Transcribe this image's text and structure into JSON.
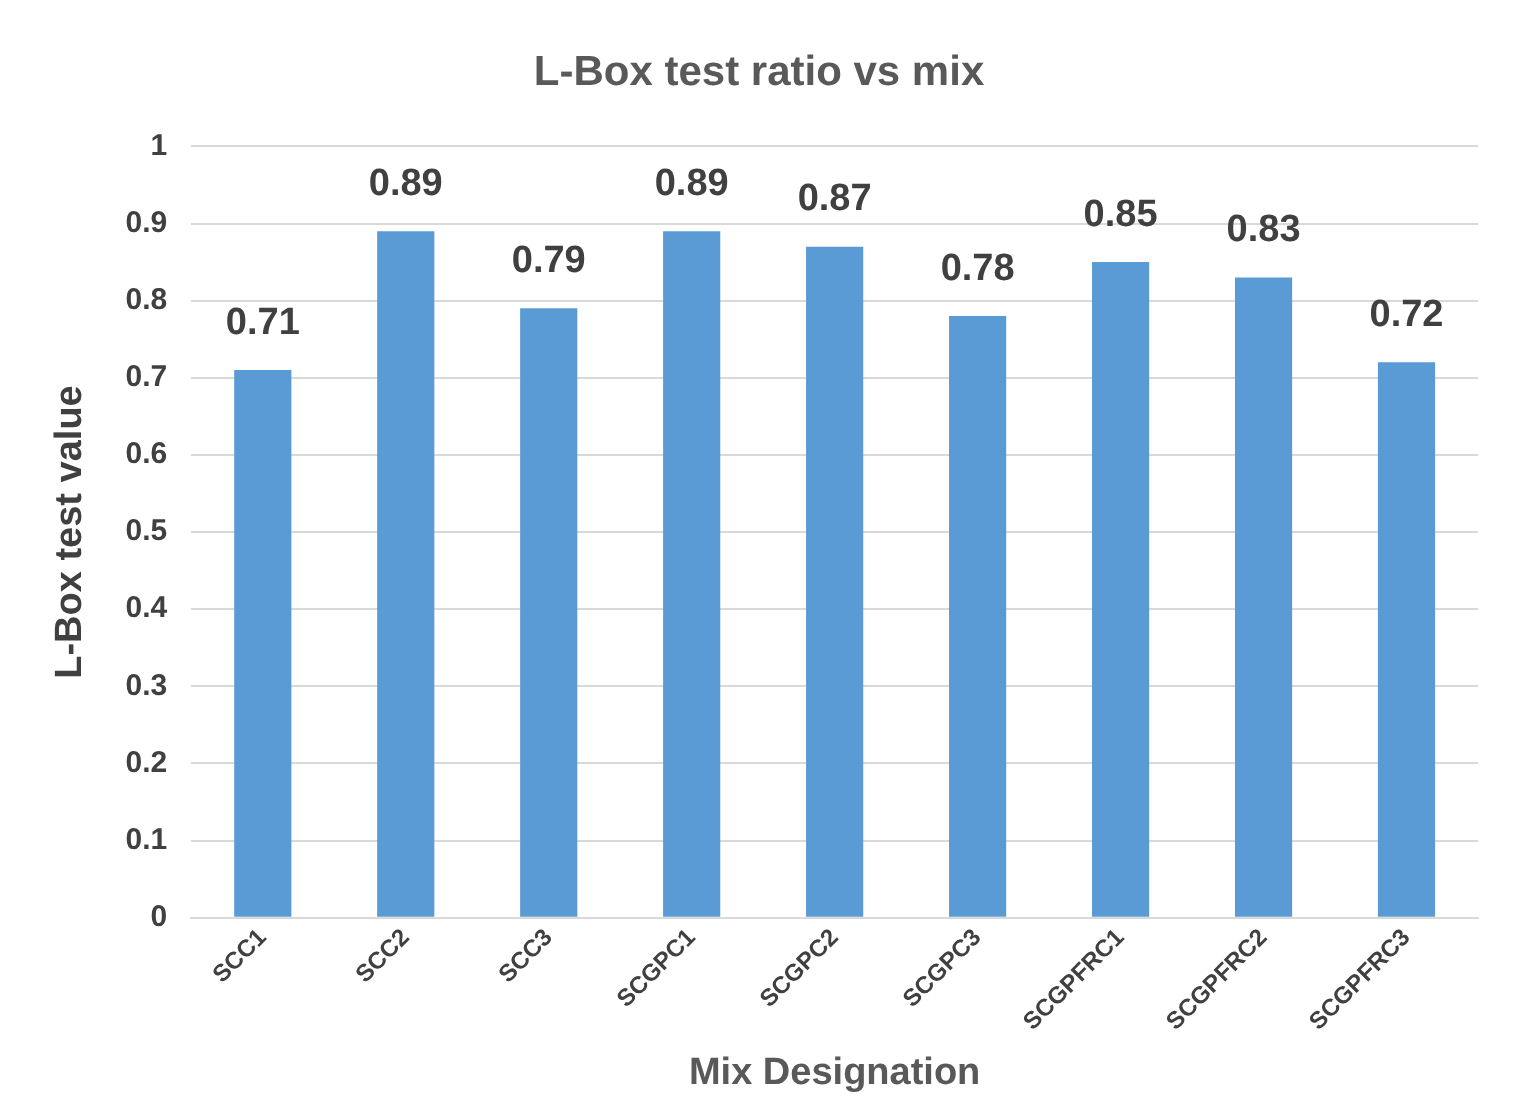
{
  "chart_data": {
    "type": "bar",
    "title": "L-Box test ratio vs mix",
    "xlabel": "Mix Designation",
    "ylabel": "L-Box test value",
    "categories": [
      "SCC1",
      "SCC2",
      "SCC3",
      "SCGPC1",
      "SCGPC2",
      "SCGPC3",
      "SCGPFRC1",
      "SCGPFRC2",
      "SCGPFRC3"
    ],
    "values": [
      0.71,
      0.89,
      0.79,
      0.89,
      0.87,
      0.78,
      0.85,
      0.83,
      0.72
    ],
    "color": "#5b9bd5",
    "ylim": [
      0,
      1
    ],
    "yticks": [
      0,
      0.1,
      0.2,
      0.3,
      0.4,
      0.5,
      0.6,
      0.7,
      0.8,
      0.9,
      1
    ],
    "grid": "y",
    "data_labels": true
  }
}
